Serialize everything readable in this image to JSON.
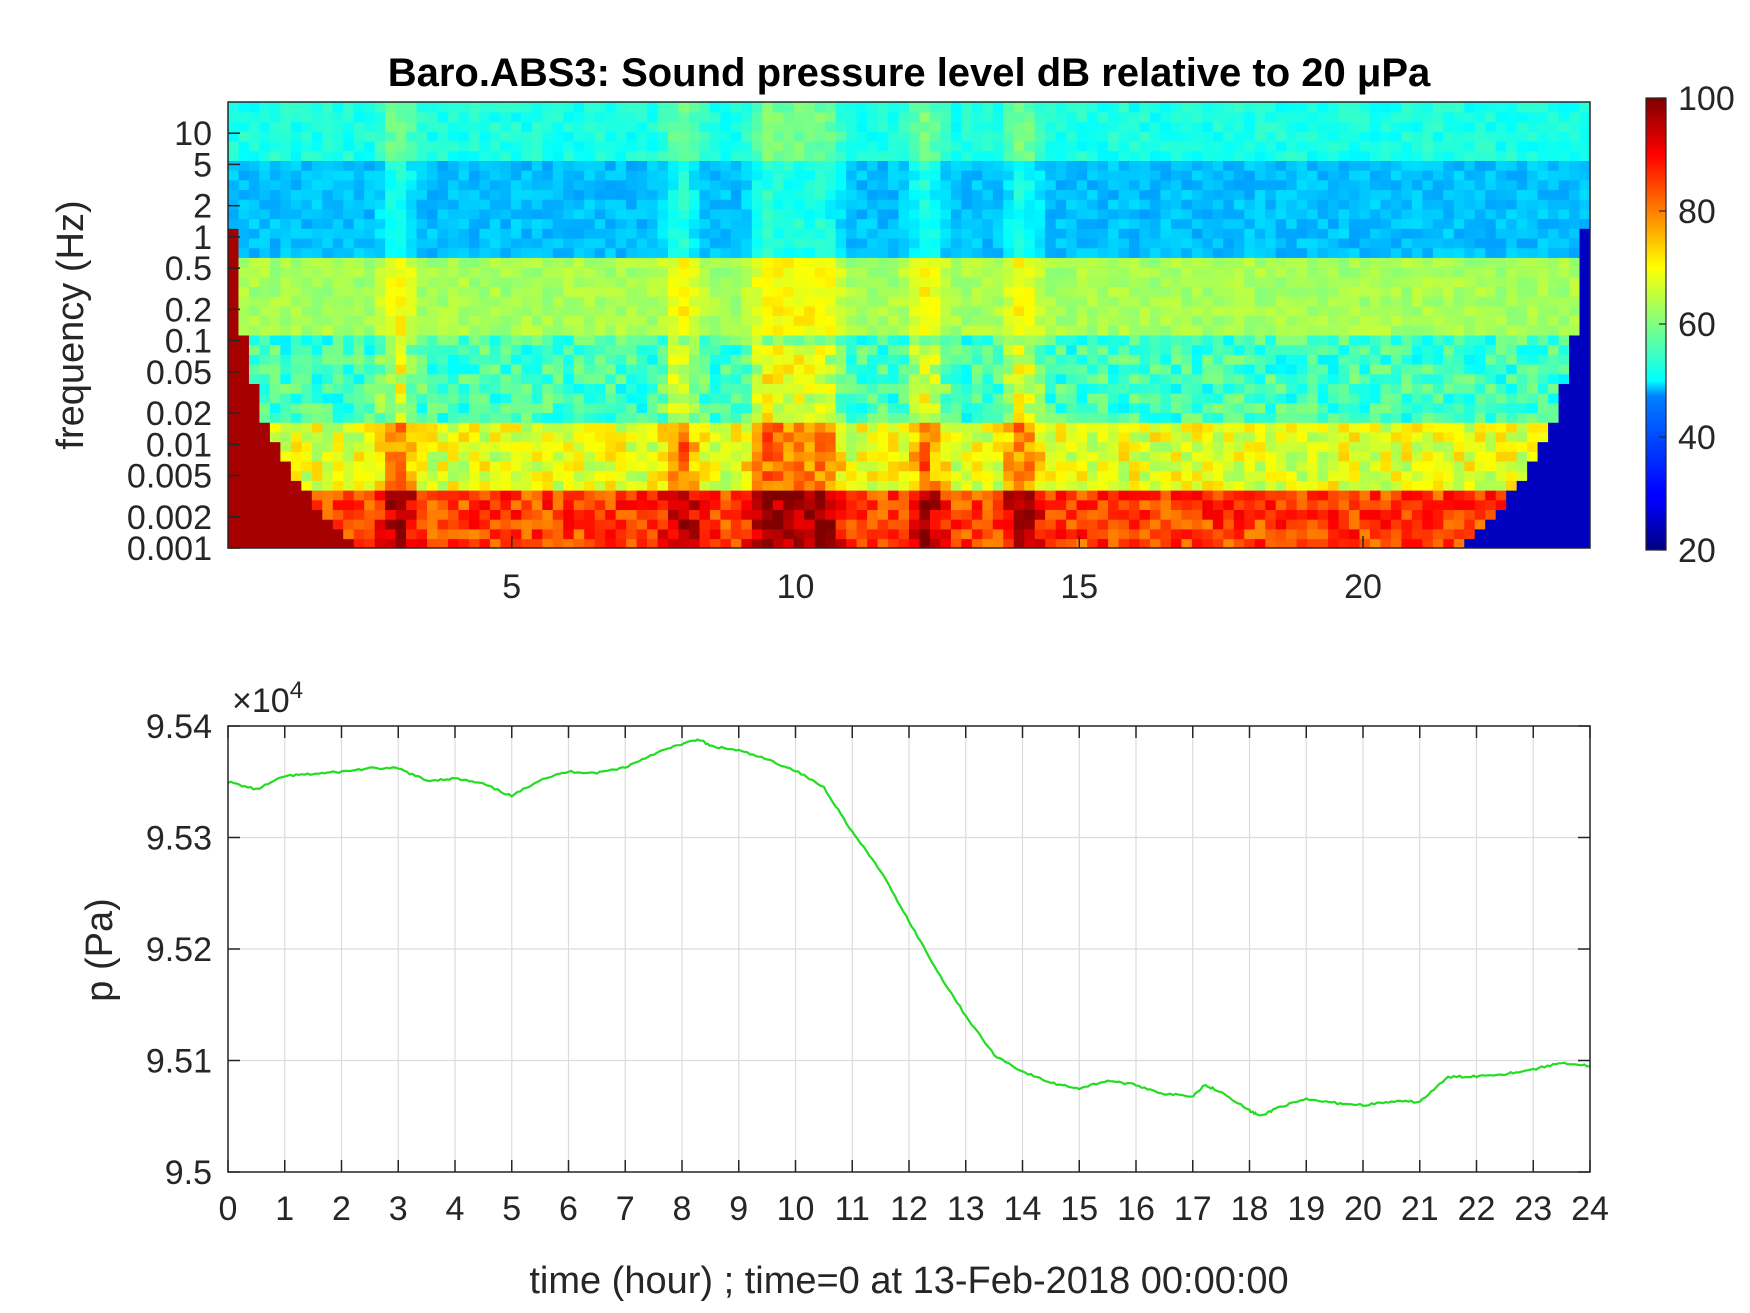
{
  "chart_data": [
    {
      "type": "heatmap",
      "title": "Baro.ABS3: Sound pressure level dB relative to 20 μPa",
      "ylabel": "frequency (Hz)",
      "yscale": "log",
      "xlim": [
        0,
        24
      ],
      "ylim": [
        0.001,
        20
      ],
      "x_ticks": [
        "5",
        "10",
        "15",
        "20"
      ],
      "y_ticks": [
        "0.001",
        "0.002",
        "0.005",
        "0.01",
        "0.02",
        "0.05",
        "0.1",
        "0.2",
        "0.5",
        "1",
        "2",
        "5",
        "10"
      ],
      "colorbar": {
        "min": 20,
        "max": 100,
        "ticks": [
          "20",
          "40",
          "60",
          "80",
          "100"
        ],
        "colormap": "jet"
      },
      "bands": [
        {
          "f_low": 5,
          "f_high": 20,
          "level_db": 52
        },
        {
          "f_low": 0.6,
          "f_high": 5,
          "level_db": 45
        },
        {
          "f_low": 0.12,
          "f_high": 0.6,
          "level_db": 63
        },
        {
          "f_low": 0.1,
          "f_high": 0.12,
          "level_db": 55
        },
        {
          "f_low": 0.015,
          "f_high": 0.1,
          "level_db": 55
        },
        {
          "f_low": 0.004,
          "f_high": 0.015,
          "level_db": 68
        },
        {
          "f_low": 0.001,
          "f_high": 0.004,
          "level_db": 85
        }
      ],
      "events_hours": [
        3,
        8,
        9.5,
        10,
        10.5,
        12.3,
        14
      ]
    },
    {
      "type": "line",
      "xlabel": "time (hour) ; time=0 at 13-Feb-2018 00:00:00",
      "ylabel": "p (Pa)",
      "y_exponent_label": "×10",
      "y_exponent_power": "4",
      "xlim": [
        0,
        24
      ],
      "ylim": [
        9.5,
        9.54
      ],
      "x_ticks": [
        "0",
        "1",
        "2",
        "3",
        "4",
        "5",
        "6",
        "7",
        "8",
        "9",
        "10",
        "11",
        "12",
        "13",
        "14",
        "15",
        "16",
        "17",
        "18",
        "19",
        "20",
        "21",
        "22",
        "23",
        "24"
      ],
      "y_ticks": [
        "9.5",
        "9.51",
        "9.52",
        "9.53",
        "9.54"
      ],
      "grid": true,
      "series_color": "#22dd22",
      "x": [
        0,
        0.5,
        1,
        1.5,
        2,
        2.5,
        3,
        3.5,
        4,
        4.5,
        5,
        5.5,
        6,
        6.5,
        7,
        7.5,
        8,
        8.3,
        8.5,
        9,
        9.5,
        10,
        10.5,
        11,
        11.5,
        12,
        12.5,
        13,
        13.5,
        14,
        14.5,
        15,
        15.5,
        16,
        16.5,
        17,
        17.2,
        17.5,
        18,
        18.2,
        18.5,
        19,
        19.5,
        20,
        20.5,
        21,
        21.5,
        22,
        22.5,
        23,
        23.5,
        24
      ],
      "y": [
        9.535,
        9.5343,
        9.5355,
        9.5357,
        9.5359,
        9.5362,
        9.5362,
        9.5351,
        9.5353,
        9.5348,
        9.5337,
        9.5352,
        9.5359,
        9.5358,
        9.5363,
        9.5375,
        9.5384,
        9.5388,
        9.5382,
        9.5378,
        9.537,
        9.536,
        9.5345,
        9.5305,
        9.527,
        9.5225,
        9.518,
        9.514,
        9.5105,
        9.509,
        9.508,
        9.5075,
        9.5082,
        9.5078,
        9.507,
        9.5068,
        9.5078,
        9.5072,
        9.5055,
        9.505,
        9.5058,
        9.5065,
        9.5062,
        9.506,
        9.5063,
        9.5063,
        9.5085,
        9.5086,
        9.5088,
        9.5092,
        9.5098,
        9.5095
      ]
    }
  ]
}
